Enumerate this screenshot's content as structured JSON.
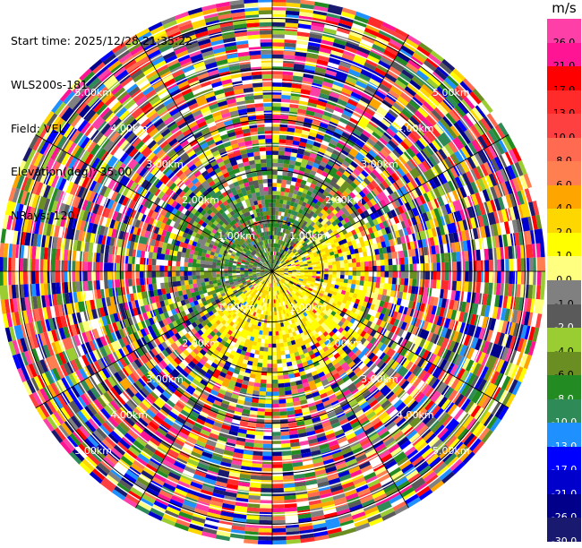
{
  "info": {
    "start_time": "Start time: 2025/12/28 21:35:22",
    "station": "WLS200s-181",
    "field": "Field: VEL",
    "elevation": "Elevation(deg): 35.00",
    "nrays": "NRays: 120"
  },
  "colorbar": {
    "unit": "m/s",
    "ticks": [
      "26.0",
      "21.0",
      "17.0",
      "13.0",
      "10.0",
      "8.0",
      "6.0",
      "4.0",
      "2.0",
      "1.0",
      "0.0",
      "-1.0",
      "-2.0",
      "-4.0",
      "-6.0",
      "-8.0",
      "-10.0",
      "-13.0",
      "-17.0",
      "-21.0",
      "-26.0",
      "-30.0"
    ],
    "colors": [
      "#ff3fa8",
      "#ff1493",
      "#ff0000",
      "#ff2a2a",
      "#ff4040",
      "#ff6a50",
      "#ff7f50",
      "#ffa500",
      "#ffd700",
      "#ffff00",
      "#ffff80",
      "#808080",
      "#5a5a5a",
      "#9acd32",
      "#6b8e23",
      "#228b22",
      "#2e8b57",
      "#1e90ff",
      "#0000ff",
      "#0000cd",
      "#00008b",
      "#191970"
    ],
    "text_colors": [
      "#000000",
      "#000000",
      "#000000",
      "#000000",
      "#000000",
      "#000000",
      "#000000",
      "#000000",
      "#000000",
      "#000000",
      "#000000",
      "#000000",
      "#ffffff",
      "#000000",
      "#000000",
      "#ffffff",
      "#ffffff",
      "#ffffff",
      "#ffffff",
      "#ffffff",
      "#ffffff",
      "#ffffff"
    ]
  },
  "chart_data": {
    "type": "heatmap",
    "projection": "polar PPI (range rings, radial spokes)",
    "field": "VEL",
    "unit": "m/s",
    "nrays": 120,
    "range_rings_km": [
      1,
      2,
      3,
      4,
      5
    ],
    "ring_labels": [
      "1.00km",
      "2.00km",
      "3.00km",
      "4.00km",
      "5.00km"
    ],
    "max_range_km": 5.4,
    "spoke_angles_deg": [
      0,
      30,
      60,
      90,
      120,
      150,
      180,
      210,
      240,
      270,
      300,
      330
    ],
    "value_range": [
      -30,
      30
    ],
    "pattern": "near range: yellow (0 to 4 m/s) southeast/south sectors, green (-1 to -8 m/s) west/northwest sectors; beyond ~1.5 km: noisy random values across full color scale"
  }
}
